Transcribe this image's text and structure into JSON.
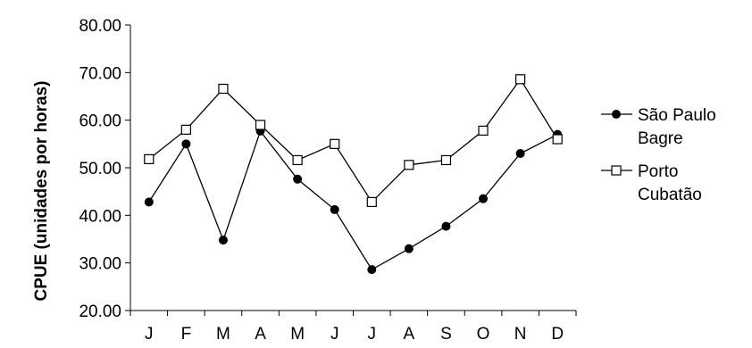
{
  "chart_data": {
    "type": "line",
    "categories": [
      "J",
      "F",
      "M",
      "A",
      "M",
      "J",
      "J",
      "A",
      "S",
      "O",
      "N",
      "D"
    ],
    "series": [
      {
        "name_lines": [
          "São Paulo",
          "Bagre"
        ],
        "marker": "filled-circle",
        "values": [
          42.8,
          55.0,
          34.8,
          57.7,
          47.6,
          41.2,
          28.6,
          33.0,
          37.7,
          43.5,
          53.0,
          57.0
        ]
      },
      {
        "name_lines": [
          "Porto",
          "Cubatão"
        ],
        "marker": "open-square",
        "values": [
          51.8,
          58.0,
          66.6,
          59.0,
          51.6,
          55.0,
          42.8,
          50.6,
          51.6,
          57.8,
          68.6,
          56.0
        ]
      }
    ],
    "ylabel": "CPUE (unidades por horas)",
    "xlabel": "",
    "ylim": [
      20,
      80
    ],
    "yticks": [
      "20.00",
      "30.00",
      "40.00",
      "50.00",
      "60.00",
      "70.00",
      "80.00"
    ],
    "grid": false,
    "legend_position": "right"
  }
}
